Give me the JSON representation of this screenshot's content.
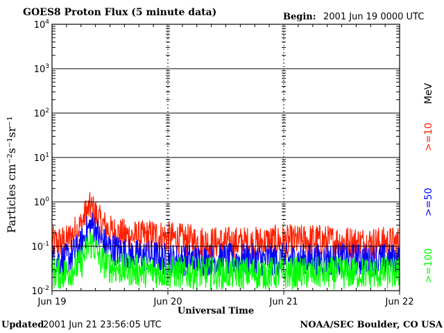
{
  "header": {
    "title": "GOES8 Proton Flux (5 minute data)",
    "begin_label": "Begin:",
    "begin_value": "2001 Jun 19 0000 UTC"
  },
  "footer": {
    "updated_label": "Updated",
    "updated_value": "2001 Jun 21 23:56:05 UTC",
    "org": "NOAA/SEC Boulder, CO USA"
  },
  "colors": {
    "ge10": "#ff2000",
    "ge50": "#0000ff",
    "ge100": "#00ff00",
    "axes": "#000000",
    "background": "#ffffff"
  },
  "chart_data": {
    "type": "line",
    "title": "GOES8 Proton Flux (5 minute data)",
    "xlabel": "Universal Time",
    "ylabel": "Particles cm⁻²s⁻¹sr⁻¹",
    "yscale": "log",
    "ylim": [
      0.01,
      10000
    ],
    "y_ticks": [
      {
        "value": 0.01,
        "base": "10",
        "exp": "-2"
      },
      {
        "value": 0.1,
        "base": "10",
        "exp": "-1"
      },
      {
        "value": 1,
        "base": "10",
        "exp": "0"
      },
      {
        "value": 10,
        "base": "10",
        "exp": "1"
      },
      {
        "value": 100,
        "base": "10",
        "exp": "2"
      },
      {
        "value": 1000,
        "base": "10",
        "exp": "3"
      },
      {
        "value": 10000,
        "base": "10",
        "exp": "4"
      }
    ],
    "x_ticks": [
      "Jun 19",
      "Jun 20",
      "Jun 21",
      "Jun 22"
    ],
    "xlim_hours": [
      0,
      72
    ],
    "legend": {
      "unit": "MeV",
      "placement": "right",
      "entries": [
        ">=10",
        ">=50",
        ">=100"
      ]
    },
    "series": [
      {
        "name": ">=10",
        "color": "#ff2000",
        "x_hours": [
          0,
          3,
          6,
          7,
          8,
          9,
          10,
          12,
          15,
          18,
          21,
          24,
          27,
          30,
          33,
          36,
          39,
          42,
          45,
          48,
          51,
          54,
          57,
          60,
          63,
          66,
          69,
          72
        ],
        "values": [
          0.12,
          0.13,
          0.3,
          0.55,
          0.75,
          0.55,
          0.35,
          0.22,
          0.18,
          0.16,
          0.18,
          0.16,
          0.14,
          0.13,
          0.12,
          0.12,
          0.12,
          0.12,
          0.13,
          0.13,
          0.13,
          0.14,
          0.13,
          0.13,
          0.12,
          0.12,
          0.12,
          0.12
        ]
      },
      {
        "name": ">=50",
        "color": "#0000ff",
        "x_hours": [
          0,
          3,
          6,
          7,
          8,
          9,
          10,
          12,
          15,
          18,
          21,
          24,
          27,
          30,
          33,
          36,
          39,
          42,
          45,
          48,
          51,
          54,
          57,
          60,
          63,
          66,
          69,
          72
        ],
        "values": [
          0.05,
          0.05,
          0.1,
          0.2,
          0.3,
          0.25,
          0.14,
          0.09,
          0.07,
          0.06,
          0.06,
          0.05,
          0.05,
          0.05,
          0.05,
          0.05,
          0.05,
          0.05,
          0.05,
          0.05,
          0.05,
          0.05,
          0.05,
          0.05,
          0.05,
          0.05,
          0.05,
          0.05
        ]
      },
      {
        "name": ">=100",
        "color": "#00ff00",
        "x_hours": [
          0,
          3,
          6,
          7,
          8,
          9,
          10,
          12,
          15,
          18,
          21,
          24,
          27,
          30,
          33,
          36,
          39,
          42,
          45,
          48,
          51,
          54,
          57,
          60,
          63,
          66,
          69,
          72
        ],
        "values": [
          0.025,
          0.025,
          0.04,
          0.08,
          0.12,
          0.09,
          0.05,
          0.035,
          0.03,
          0.028,
          0.027,
          0.026,
          0.025,
          0.025,
          0.025,
          0.025,
          0.025,
          0.025,
          0.025,
          0.025,
          0.025,
          0.025,
          0.025,
          0.025,
          0.025,
          0.025,
          0.025,
          0.025
        ]
      }
    ]
  }
}
